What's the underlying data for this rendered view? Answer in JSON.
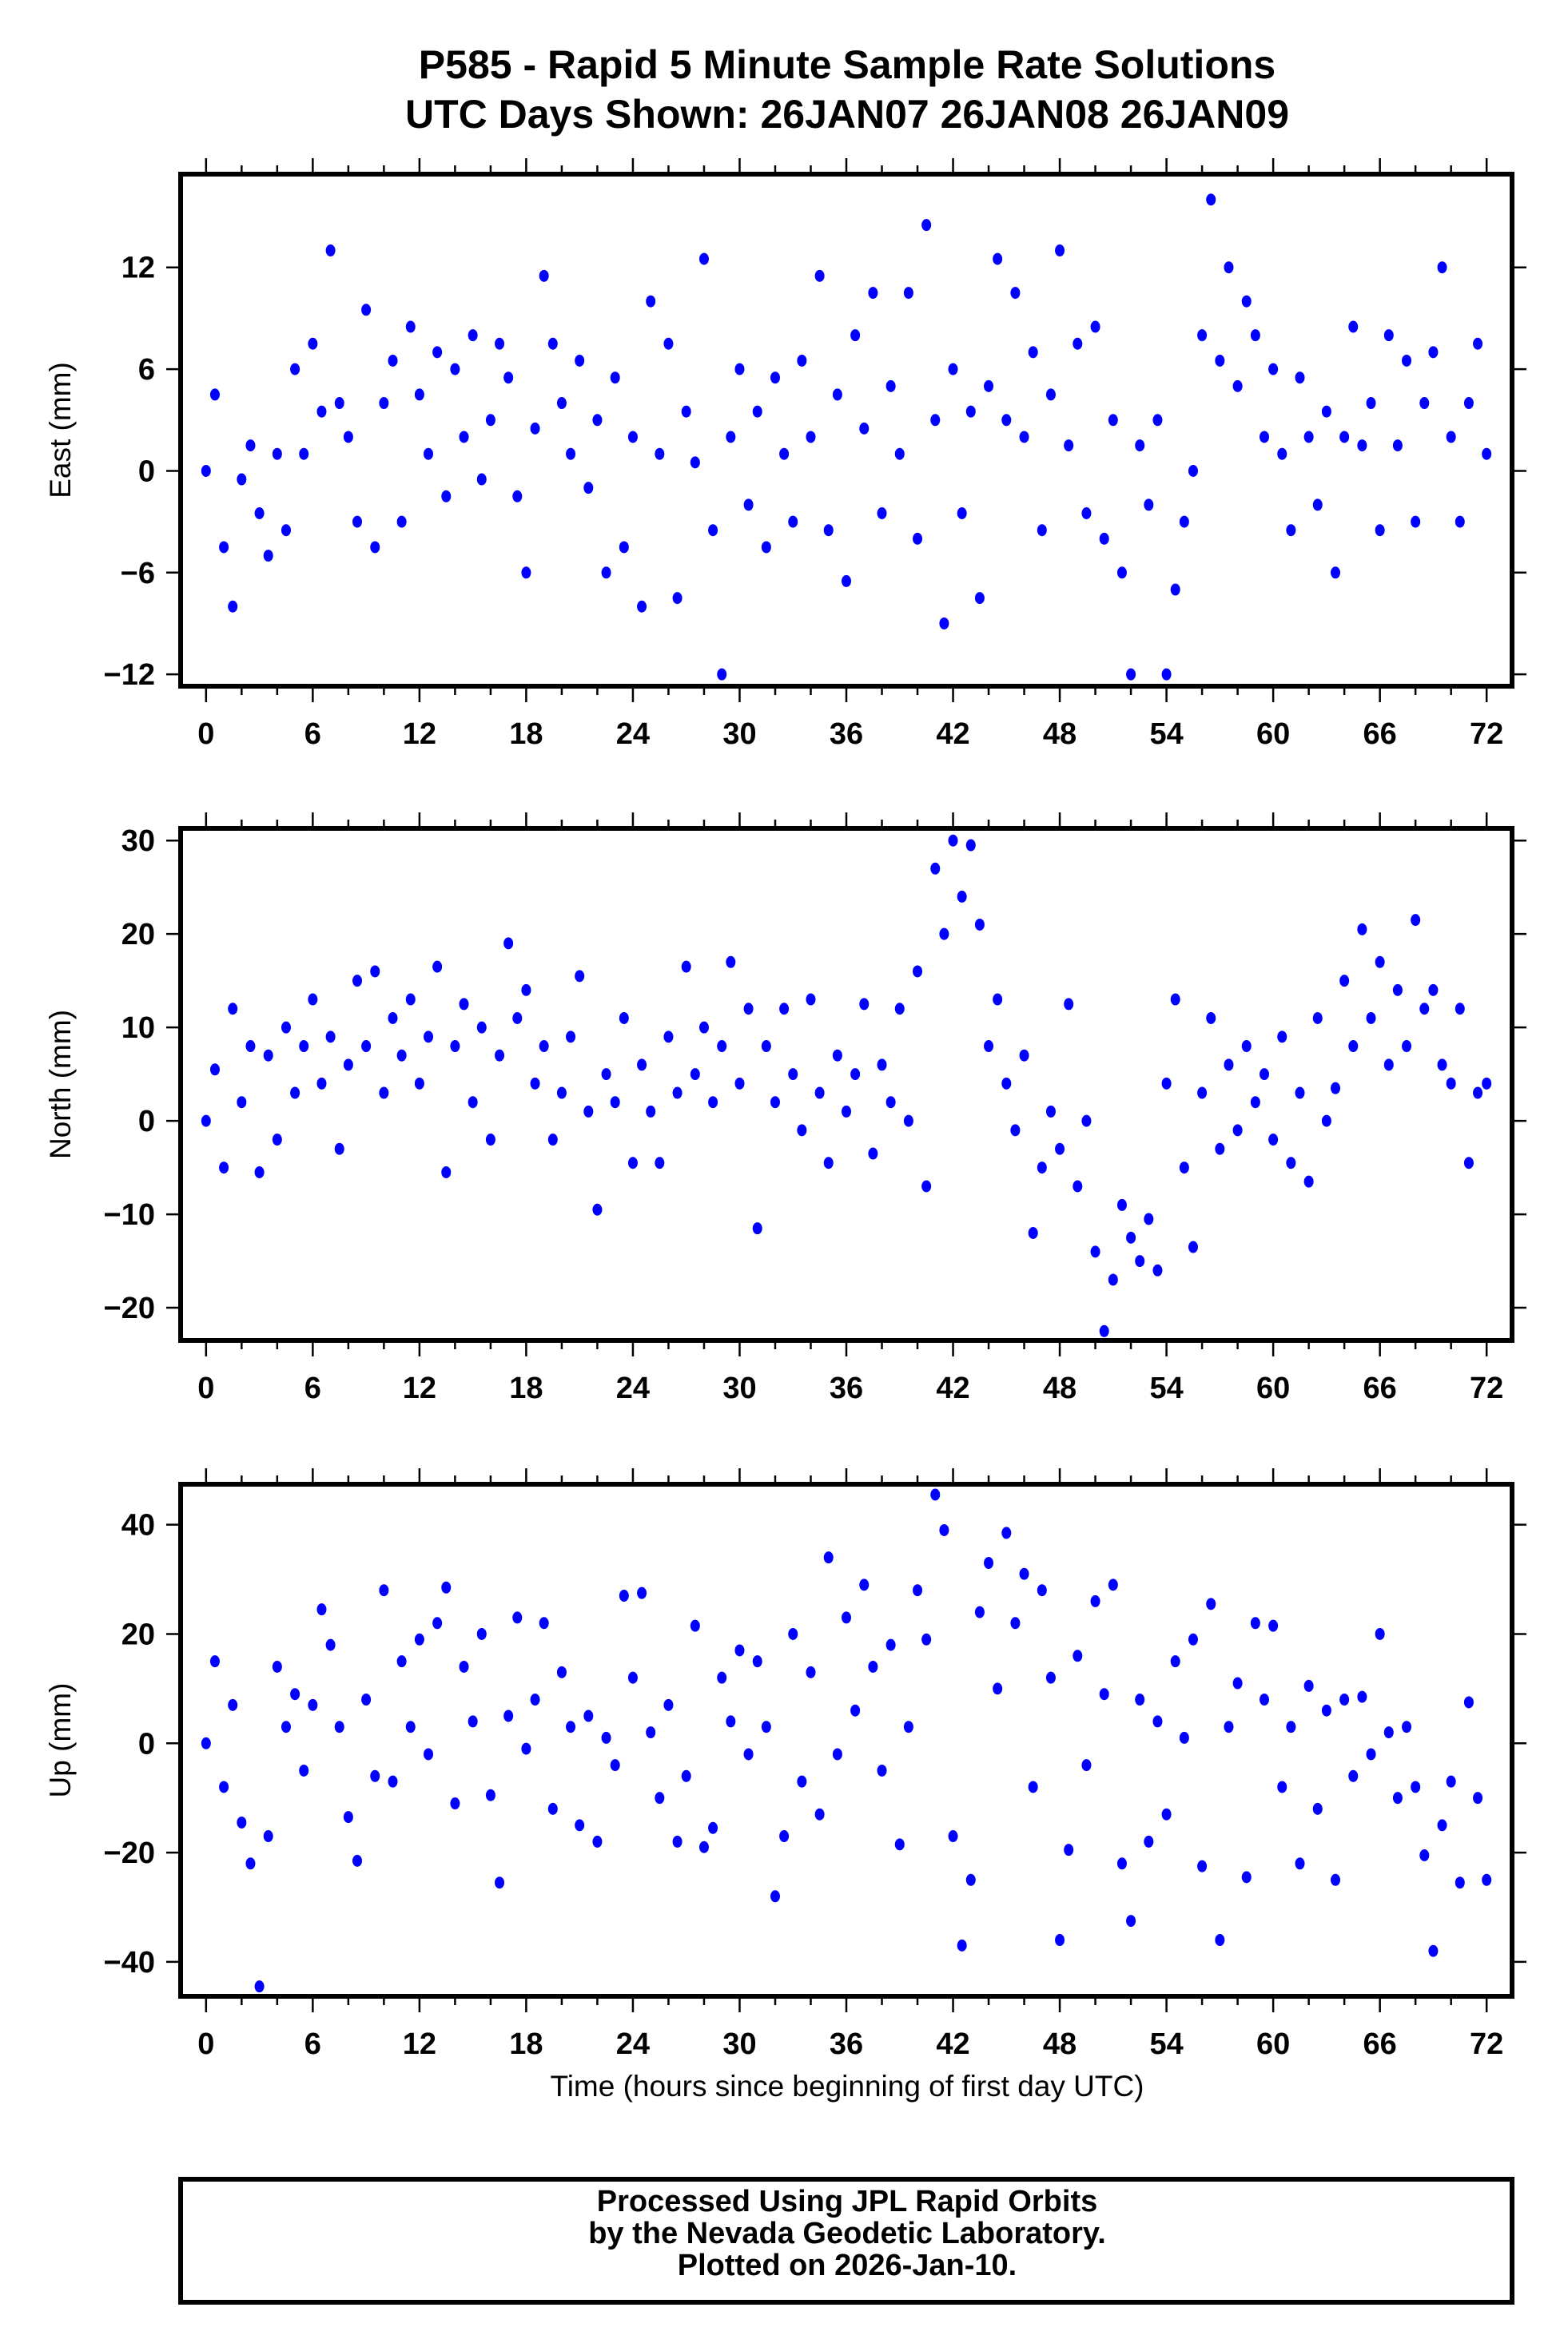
{
  "chart_data": {
    "type": "scatter",
    "title": [
      "P585 - Rapid 5 Minute Sample Rate Solutions",
      "UTC Days Shown:  26JAN07 26JAN08 26JAN09"
    ],
    "xlabel": "Time (hours since beginning of first day UTC)",
    "xlim": [
      -1.43,
      73.43
    ],
    "xticks": [
      0,
      6,
      12,
      18,
      24,
      30,
      36,
      42,
      48,
      54,
      60,
      66,
      72
    ],
    "grid": false,
    "point_color": "#0000ff",
    "x": [
      0,
      0.5,
      1,
      1.5,
      2,
      2.5,
      3,
      3.5,
      4,
      4.5,
      5,
      5.5,
      6,
      6.5,
      7,
      7.5,
      8,
      8.5,
      9,
      9.5,
      10,
      10.5,
      11,
      11.5,
      12,
      12.5,
      13,
      13.5,
      14,
      14.5,
      15,
      15.5,
      16,
      16.5,
      17,
      17.5,
      18,
      18.5,
      19,
      19.5,
      20,
      20.5,
      21,
      21.5,
      22,
      22.5,
      23,
      23.5,
      24,
      24.5,
      25,
      25.5,
      26,
      26.5,
      27,
      27.5,
      28,
      28.5,
      29,
      29.5,
      30,
      30.5,
      31,
      31.5,
      32,
      32.5,
      33,
      33.5,
      34,
      34.5,
      35,
      35.5,
      36,
      36.5,
      37,
      37.5,
      38,
      38.5,
      39,
      39.5,
      40,
      40.5,
      41,
      41.5,
      42,
      42.5,
      43,
      43.5,
      44,
      44.5,
      45,
      45.5,
      46,
      46.5,
      47,
      47.5,
      48,
      48.5,
      49,
      49.5,
      50,
      50.5,
      51,
      51.5,
      52,
      52.5,
      53,
      53.5,
      54,
      54.5,
      55,
      55.5,
      56,
      56.5,
      57,
      57.5,
      58,
      58.5,
      59,
      59.5,
      60,
      60.5,
      61,
      61.5,
      62,
      62.5,
      63,
      63.5,
      64,
      64.5,
      65,
      65.5,
      66,
      66.5,
      67,
      67.5,
      68,
      68.5,
      69,
      69.5,
      70,
      70.5,
      71,
      71.5,
      72
    ],
    "panels": [
      {
        "ylabel": "East (mm)",
        "ylim": [
          -12.7,
          17.5
        ],
        "yticks": [
          -12,
          -6,
          0,
          6,
          12
        ],
        "ytick_labels": [
          "−12",
          "−6",
          "0",
          "6",
          "12"
        ],
        "y": [
          0,
          4.5,
          -4.5,
          -8,
          -0.5,
          1.5,
          -2.5,
          -5,
          1,
          -3.5,
          6,
          1,
          7.5,
          3.5,
          13,
          4,
          2,
          -3,
          9.5,
          -4.5,
          4,
          6.5,
          -3,
          8.5,
          4.5,
          1,
          7,
          -1.5,
          6,
          2,
          8,
          -0.5,
          3,
          7.5,
          5.5,
          -1.5,
          -6,
          2.5,
          11.5,
          7.5,
          4,
          1,
          6.5,
          -1,
          3,
          -6,
          5.5,
          -4.5,
          2,
          -8,
          10,
          1,
          7.5,
          -7.5,
          3.5,
          0.5,
          12.5,
          -3.5,
          -12,
          2,
          6,
          -2,
          3.5,
          -4.5,
          5.5,
          1,
          -3,
          6.5,
          2,
          11.5,
          -3.5,
          4.5,
          -6.5,
          8,
          2.5,
          10.5,
          -2.5,
          5,
          1,
          10.5,
          -4,
          14.5,
          3,
          -9,
          6,
          -2.5,
          3.5,
          -7.5,
          5,
          12.5,
          3,
          10.5,
          2,
          7,
          -3.5,
          4.5,
          13,
          1.5,
          7.5,
          -2.5,
          8.5,
          -4,
          3,
          -6,
          -12,
          1.5,
          -2,
          3,
          -12,
          -7,
          -3,
          0,
          8,
          16,
          6.5,
          12,
          5,
          10,
          8,
          2,
          6,
          1,
          -3.5,
          5.5,
          2,
          -2,
          3.5,
          -6,
          2,
          8.5,
          1.5,
          4,
          -3.5,
          8,
          1.5,
          6.5,
          -3,
          4,
          7,
          12,
          2,
          -3,
          4,
          7.5,
          1
        ]
      },
      {
        "ylabel": "North (mm)",
        "ylim": [
          -23.5,
          31.3
        ],
        "yticks": [
          -20,
          -10,
          0,
          10,
          20,
          30
        ],
        "ytick_labels": [
          "−20",
          "−10",
          "0",
          "10",
          "20",
          "30"
        ],
        "y": [
          0,
          5.5,
          -5,
          12,
          2,
          8,
          -5.5,
          7,
          -2,
          10,
          3,
          8,
          13,
          4,
          9,
          -3,
          6,
          15,
          8,
          16,
          3,
          11,
          7,
          13,
          4,
          9,
          16.5,
          -5.5,
          8,
          12.5,
          2,
          10,
          -2,
          7,
          19,
          11,
          14,
          4,
          8,
          -2,
          3,
          9,
          15.5,
          1,
          -9.5,
          5,
          2,
          11,
          -4.5,
          6,
          1,
          -4.5,
          9,
          3,
          16.5,
          5,
          10,
          2,
          8,
          17,
          4,
          12,
          -11.5,
          8,
          2,
          12,
          5,
          -1,
          13,
          3,
          -4.5,
          7,
          1,
          5,
          12.5,
          -3.5,
          6,
          2,
          12,
          0,
          16,
          -7,
          27,
          20,
          30,
          24,
          29.5,
          21,
          8,
          13,
          4,
          -1,
          7,
          -12,
          -5,
          1,
          -3,
          12.5,
          -7,
          0,
          -14,
          -22.5,
          -17,
          -9,
          -12.5,
          -15,
          -10.5,
          -16,
          4,
          13,
          -5,
          -13.5,
          3,
          11,
          -3,
          6,
          -1,
          8,
          2,
          5,
          -2,
          9,
          -4.5,
          3,
          -6.5,
          11,
          0,
          3.5,
          15,
          8,
          20.5,
          11,
          17,
          6,
          14,
          8,
          21.5,
          12,
          14,
          6,
          4,
          12,
          -4.5,
          3,
          4
        ]
      },
      {
        "ylabel": "Up (mm)",
        "ylim": [
          -46.3,
          47.4
        ],
        "yticks": [
          -40,
          -20,
          0,
          20,
          40
        ],
        "ytick_labels": [
          "−40",
          "−20",
          "0",
          "20",
          "40"
        ],
        "y": [
          0,
          15,
          -8,
          7,
          -14.5,
          -22,
          -44.5,
          -17,
          14,
          3,
          9,
          -5,
          7,
          24.5,
          18,
          3,
          -13.5,
          -21.5,
          8,
          -6,
          28,
          -7,
          15,
          3,
          19,
          -2,
          22,
          28.5,
          -11,
          14,
          4,
          20,
          -9.5,
          -25.5,
          5,
          23,
          -1,
          8,
          22,
          -12,
          13,
          3,
          -15,
          5,
          -18,
          1,
          -4,
          27,
          12,
          27.5,
          2,
          -10,
          7,
          -18,
          -6,
          21.5,
          -19,
          -15.5,
          12,
          4,
          17,
          -2,
          15,
          3,
          -28,
          -17,
          20,
          -7,
          13,
          -13,
          34,
          -2,
          23,
          6,
          29,
          14,
          -5,
          18,
          -18.5,
          3,
          28,
          19,
          45.5,
          39,
          -17,
          -37,
          -25,
          24,
          33,
          10,
          38.5,
          22,
          31,
          -8,
          28,
          12,
          -36,
          -19.5,
          16,
          -4,
          26,
          9,
          29,
          -22,
          -32.5,
          8,
          -18,
          4,
          -13,
          15,
          1,
          19,
          -22.5,
          25.5,
          -36,
          3,
          11,
          -24.5,
          22,
          8,
          21.5,
          -8,
          3,
          -22,
          10.5,
          -12,
          6,
          -25,
          8,
          -6,
          8.5,
          -2,
          20,
          2,
          -10,
          3,
          -8,
          -20.5,
          -38,
          -15,
          -7,
          -25.5,
          7.5,
          -10,
          -25
        ]
      }
    ]
  },
  "footer": {
    "lines": [
      "Processed Using JPL Rapid Orbits",
      "by the Nevada Geodetic Laboratory.",
      "Plotted on 2026-Jan-10."
    ]
  }
}
